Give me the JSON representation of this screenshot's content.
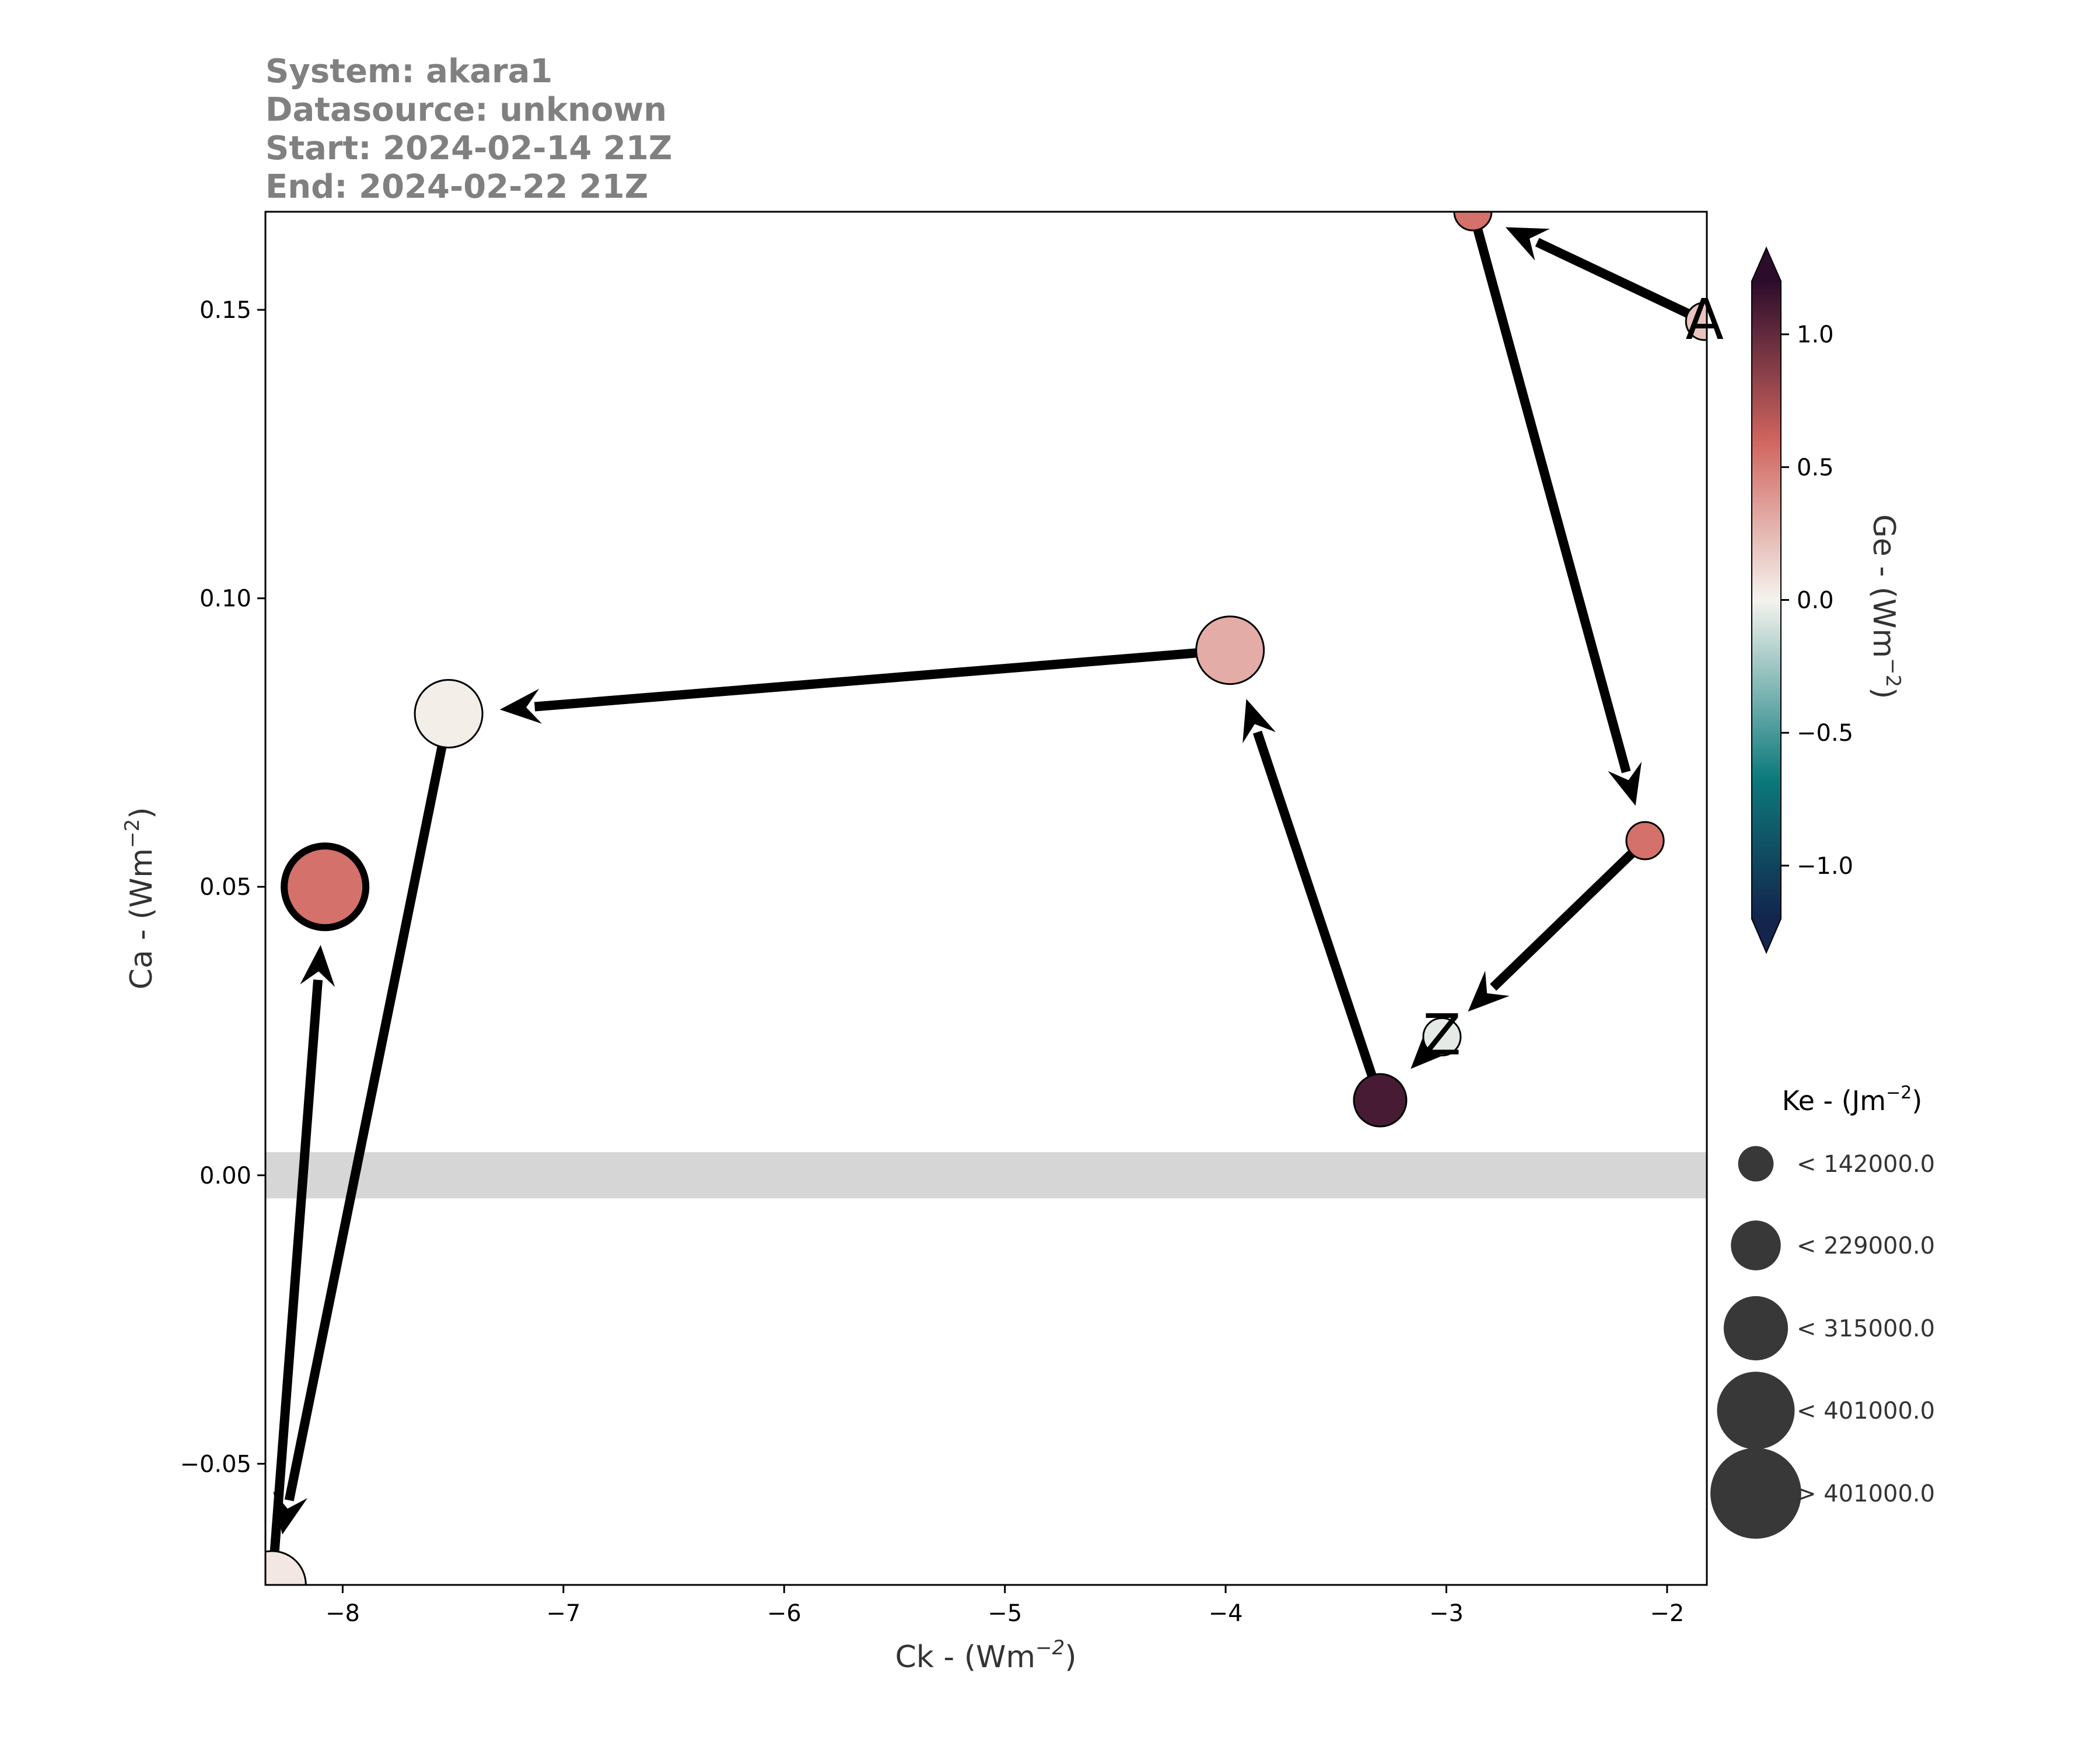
{
  "header": {
    "system": "System: akara1",
    "datasource": "Datasource: unknown",
    "start": "Start: 2024-02-14 21Z",
    "end": "End: 2024-02-22 21Z"
  },
  "chart_data": {
    "type": "scatter",
    "xlabel": "Ck - (Wm",
    "xlabel_sup": "−2",
    "xlabel_end": ")",
    "ylabel": "Ca - (Wm",
    "ylabel_sup": "−2",
    "ylabel_end": ")",
    "xlim": [
      -8.35,
      -1.82
    ],
    "ylim": [
      -0.071,
      0.167
    ],
    "xticks": [
      -8,
      -7,
      -6,
      -5,
      -4,
      -3,
      -2
    ],
    "xtick_labels": [
      "−8",
      "−7",
      "−6",
      "−5",
      "−4",
      "−3",
      "−2"
    ],
    "yticks": [
      -0.05,
      0.0,
      0.05,
      0.1,
      0.15
    ],
    "ytick_labels": [
      "−0.05",
      "0.00",
      "0.05",
      "0.10",
      "0.15"
    ],
    "zero_band": [
      -0.004,
      0.004
    ],
    "points": [
      {
        "label": "A",
        "x": -1.83,
        "y": 0.148,
        "ge": 0.2,
        "ke_class": 0
      },
      {
        "label": "",
        "x": -2.88,
        "y": 0.167,
        "ge": 0.55,
        "ke_class": 0
      },
      {
        "label": "",
        "x": -2.1,
        "y": 0.058,
        "ge": 0.55,
        "ke_class": 0
      },
      {
        "label": "Z",
        "x": -3.02,
        "y": 0.024,
        "ge": -0.05,
        "ke_class": 0
      },
      {
        "label": "",
        "x": -3.3,
        "y": 0.013,
        "ge": 1.1,
        "ke_class": 1
      },
      {
        "label": "",
        "x": -3.98,
        "y": 0.091,
        "ge": 0.3,
        "ke_class": 2
      },
      {
        "label": "",
        "x": -7.52,
        "y": 0.08,
        "ge": 0.02,
        "ke_class": 2
      },
      {
        "label": "",
        "x": -8.32,
        "y": -0.071,
        "ge": 0.05,
        "ke_class": 2
      },
      {
        "label": "",
        "x": -8.08,
        "y": 0.05,
        "ge": 0.55,
        "ke_class": 3
      }
    ],
    "path_order": [
      0,
      1,
      2,
      3,
      4,
      5,
      6,
      7,
      8
    ],
    "path_note_direction": "arrows from first to last point",
    "colorbar": {
      "label": "Ge - (Wm",
      "label_sup": "−2",
      "label_end": ")",
      "range": [
        -1.2,
        1.2
      ],
      "ticks": [
        -1.0,
        -0.5,
        0.0,
        0.5,
        1.0
      ],
      "tick_labels": [
        "−1.0",
        "−0.5",
        "0.0",
        "0.5",
        "1.0"
      ],
      "colors": [
        "#13244d",
        "#0c7a7b",
        "#f5f3ee",
        "#d0655e",
        "#2b0c2b"
      ]
    },
    "size_legend": {
      "title": "Ke - (Jm",
      "title_sup": "−2",
      "title_end": ")",
      "entries": [
        "< 142000.0",
        "< 229000.0",
        "< 315000.0",
        "< 401000.0",
        "> 401000.0"
      ]
    }
  }
}
